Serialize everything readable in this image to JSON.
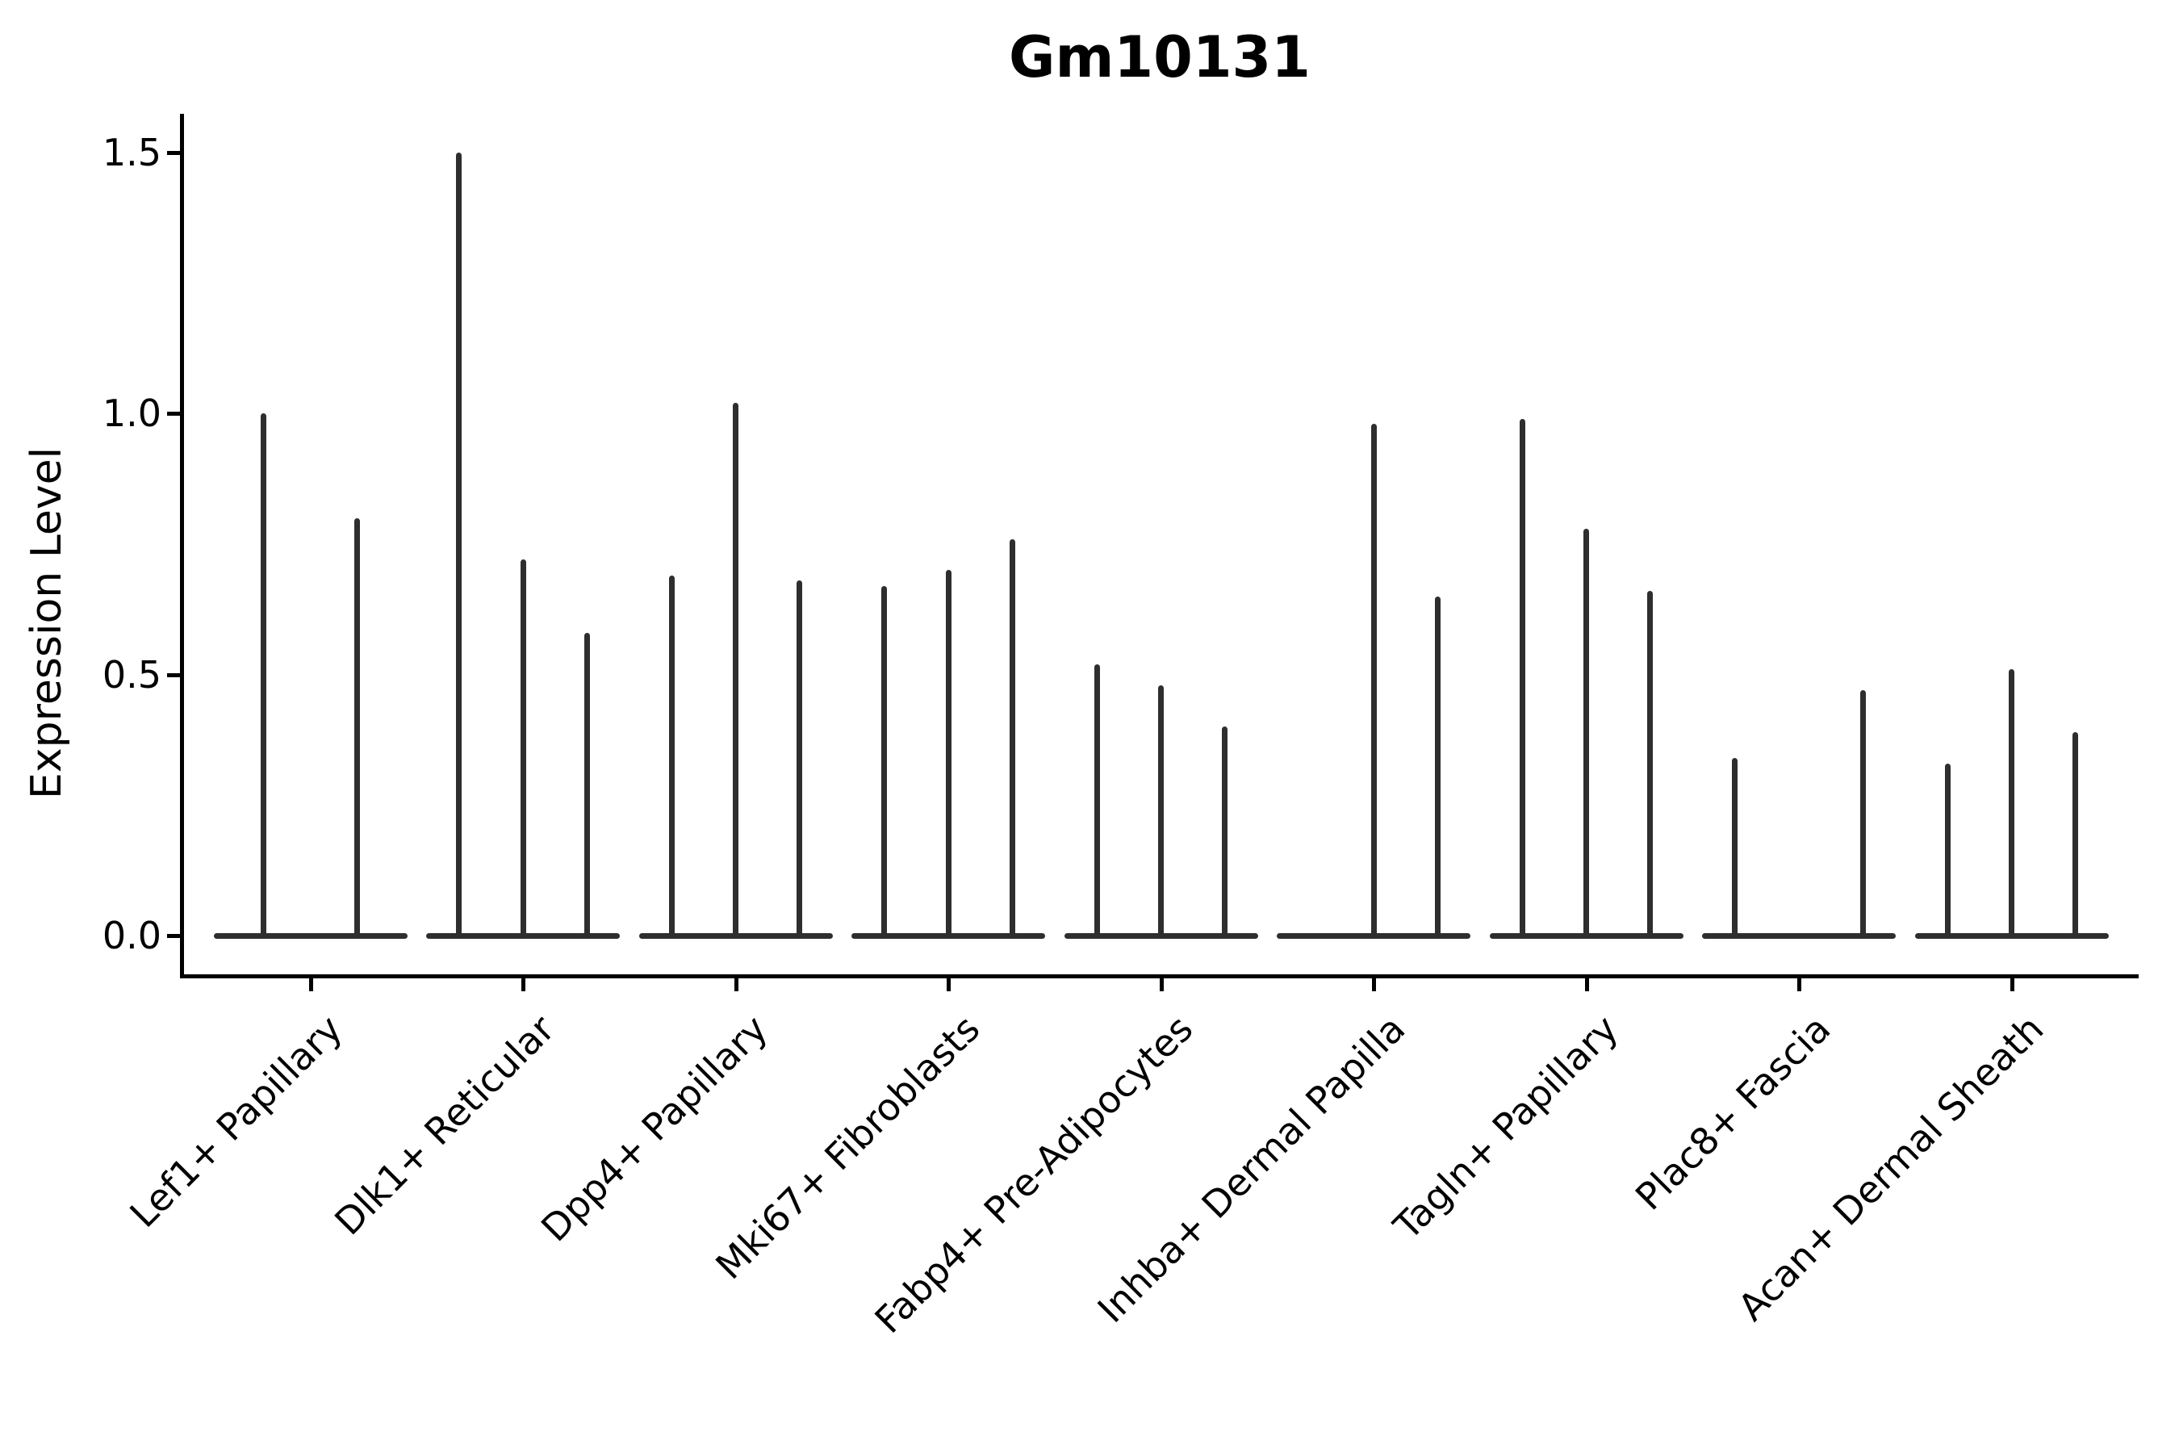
{
  "title": "Gm10131",
  "y_axis": {
    "label": "Expression Level",
    "tick_labels": [
      "0.0",
      "0.5",
      "1.0",
      "1.5"
    ]
  },
  "chart_data": {
    "type": "violin",
    "title": "Gm10131",
    "xlabel": "",
    "ylabel": "Expression Level",
    "ylim": [
      0,
      1.58
    ],
    "yticks": [
      0.0,
      0.5,
      1.0,
      1.5
    ],
    "grid": false,
    "legend": "none",
    "categories": [
      "Lef1+ Papillary",
      "Dlk1+ Reticular",
      "Dpp4+ Papillary",
      "Mki67+ Fibroblasts",
      "Fabp4+ Pre-Adipocytes",
      "Inhba+ Dermal Papilla",
      "Tagln+ Papillary",
      "Plac8+ Fascia",
      "Acan+ Dermal Sheath"
    ],
    "groups": [
      {
        "category": "Lef1+ Papillary",
        "violins": [
          {
            "offset": -0.22,
            "peak": 1.0
          },
          {
            "offset": 0.22,
            "peak": 0.8
          }
        ]
      },
      {
        "category": "Dlk1+ Reticular",
        "violins": [
          {
            "offset": -0.3,
            "peak": 1.5
          },
          {
            "offset": 0.0,
            "peak": 0.72
          },
          {
            "offset": 0.3,
            "peak": 0.58
          }
        ]
      },
      {
        "category": "Dpp4+ Papillary",
        "violins": [
          {
            "offset": -0.3,
            "peak": 0.69
          },
          {
            "offset": 0.0,
            "peak": 1.02
          },
          {
            "offset": 0.3,
            "peak": 0.68
          }
        ]
      },
      {
        "category": "Mki67+ Fibroblasts",
        "violins": [
          {
            "offset": -0.3,
            "peak": 0.67
          },
          {
            "offset": 0.0,
            "peak": 0.7
          },
          {
            "offset": 0.3,
            "peak": 0.76
          }
        ]
      },
      {
        "category": "Fabp4+ Pre-Adipocytes",
        "violins": [
          {
            "offset": -0.3,
            "peak": 0.52
          },
          {
            "offset": 0.0,
            "peak": 0.48
          },
          {
            "offset": 0.3,
            "peak": 0.4
          }
        ]
      },
      {
        "category": "Inhba+ Dermal Papilla",
        "violins": [
          {
            "offset": 0.0,
            "peak": 0.98
          },
          {
            "offset": 0.3,
            "peak": 0.65
          }
        ]
      },
      {
        "category": "Tagln+ Papillary",
        "violins": [
          {
            "offset": -0.3,
            "peak": 0.99
          },
          {
            "offset": 0.0,
            "peak": 0.78
          },
          {
            "offset": 0.3,
            "peak": 0.66
          }
        ]
      },
      {
        "category": "Plac8+ Fascia",
        "violins": [
          {
            "offset": -0.3,
            "peak": 0.34
          },
          {
            "offset": 0.3,
            "peak": 0.47
          }
        ]
      },
      {
        "category": "Acan+ Dermal Sheath",
        "violins": [
          {
            "offset": -0.3,
            "peak": 0.33
          },
          {
            "offset": 0.0,
            "peak": 0.51
          },
          {
            "offset": 0.3,
            "peak": 0.39
          }
        ]
      }
    ],
    "style": {
      "line_color": "#2e2e2e",
      "axis_color": "#000000",
      "background": "#ffffff"
    }
  }
}
